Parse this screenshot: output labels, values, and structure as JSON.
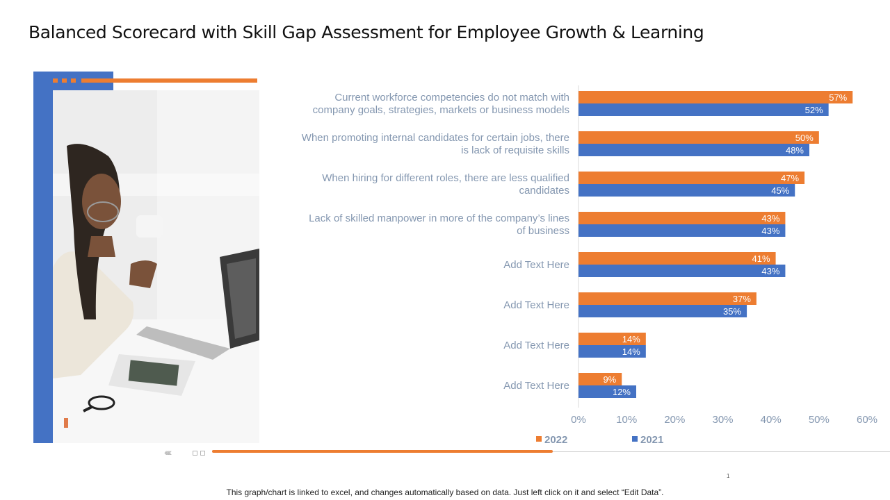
{
  "title": "Balanced Scorecard with Skill Gap Assessment for Employee Growth & Learning",
  "footnote": "This graph/chart is linked to excel, and changes automatically based on data. Just left click on it and select “Edit Data”.",
  "page_number": "1",
  "photo": {
    "icon": "woman-working-laptop-photo"
  },
  "colors": {
    "accent_orange": "#ed7d31",
    "accent_blue": "#4472c4",
    "label_gray": "#8497b0"
  },
  "chart_data": {
    "type": "bar",
    "orientation": "horizontal",
    "title": "",
    "categories": [
      [
        "Current workforce competencies do not match with",
        "company goals, strategies, markets or business models"
      ],
      [
        "When promoting internal candidates for certain jobs, there",
        "is lack of requisite skills"
      ],
      [
        "When hiring for different roles, there are less qualified",
        "candidates"
      ],
      [
        "Lack of skilled manpower in more of the company’s lines",
        "of business"
      ],
      [
        "Add Text Here"
      ],
      [
        "Add Text Here"
      ],
      [
        "Add Text Here"
      ],
      [
        "Add Text Here"
      ]
    ],
    "series": [
      {
        "name": "2022",
        "color": "#ed7d31",
        "values": [
          57,
          50,
          47,
          43,
          41,
          37,
          14,
          9
        ]
      },
      {
        "name": "2021",
        "color": "#4472c4",
        "values": [
          52,
          48,
          45,
          43,
          43,
          35,
          14,
          12
        ]
      }
    ],
    "xlim": [
      0,
      60
    ],
    "x_ticks": [
      0,
      10,
      20,
      30,
      40,
      50,
      60
    ],
    "tick_suffix": "%",
    "value_suffix": "%",
    "legend_position": "bottom",
    "grid": false
  }
}
